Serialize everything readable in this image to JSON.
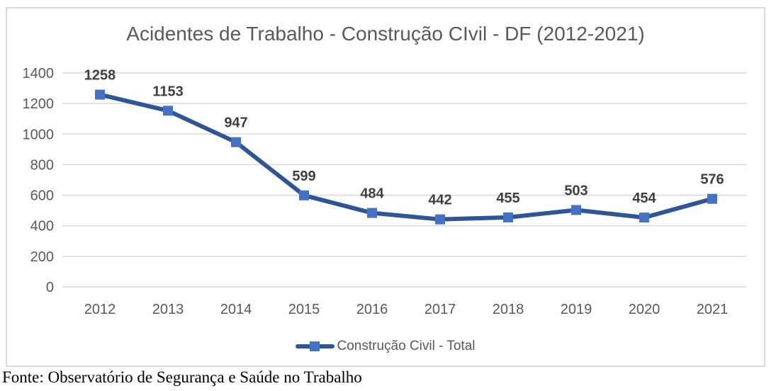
{
  "chart_data": {
    "type": "line",
    "title": "Acidentes de Trabalho - Construção CIvil - DF (2012-2021)",
    "categories": [
      "2012",
      "2013",
      "2014",
      "2015",
      "2016",
      "2017",
      "2018",
      "2019",
      "2020",
      "2021"
    ],
    "series": [
      {
        "name": "Construção Civil - Total",
        "values": [
          1258,
          1153,
          947,
          599,
          484,
          442,
          455,
          503,
          454,
          576
        ],
        "line_color": "#2e5597",
        "marker_color": "#4472c4",
        "marker": "square"
      }
    ],
    "ylim": [
      0,
      1400
    ],
    "yticks": [
      0,
      200,
      400,
      600,
      800,
      1000,
      1200,
      1400
    ],
    "grid": true,
    "gridline_color": "#d9d9d9",
    "axis_text_color": "#595959",
    "title_color": "#595959",
    "data_label_color": "#3f3f3f",
    "data_labels": true,
    "legend_position": "bottom"
  },
  "source_note": "Fonte: Observatório de Segurança e Saúde no Trabalho"
}
